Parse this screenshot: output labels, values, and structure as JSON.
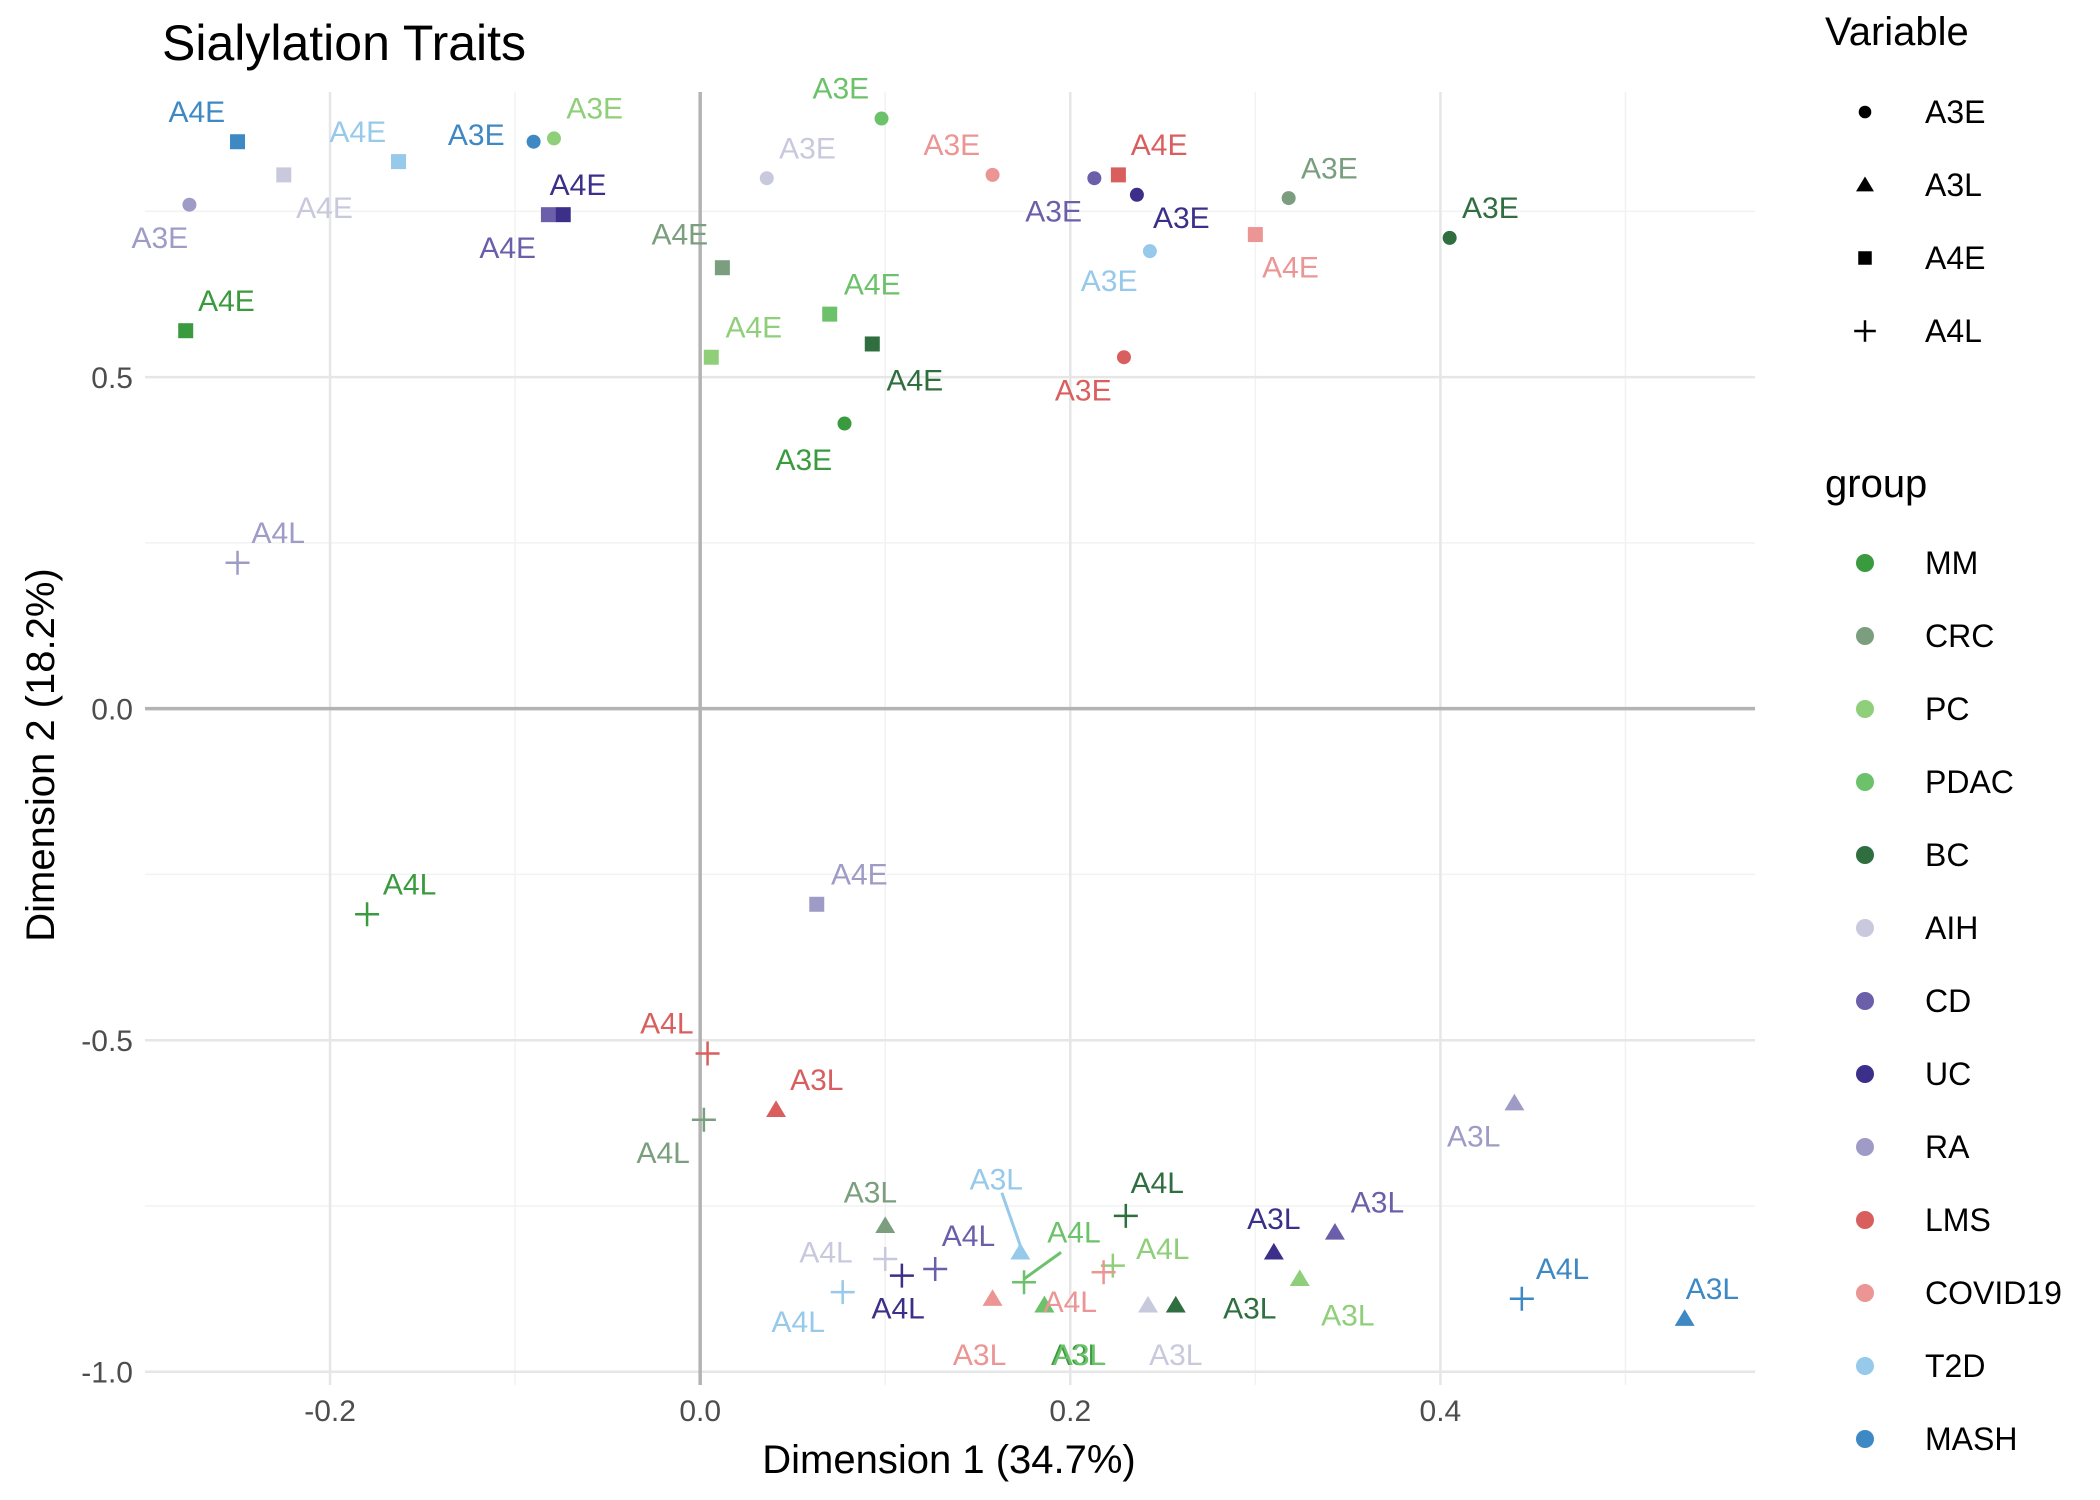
{
  "chart_data": {
    "type": "scatter",
    "title": "Sialylation  Traits",
    "xlabel": "Dimension 1 (34.7%)",
    "ylabel": "Dimension 2 (18.2%)",
    "xlim": [
      -0.3,
      0.57
    ],
    "ylim": [
      -1.02,
      0.93
    ],
    "x_ticks": [
      -0.2,
      0.0,
      0.2,
      0.4
    ],
    "x_tick_labels": [
      "-0.2",
      "0.0",
      "0.2",
      "0.4"
    ],
    "y_ticks": [
      -1.0,
      -0.5,
      0.0,
      0.5
    ],
    "y_tick_labels": [
      "-1.0",
      "-0.5",
      "0.0",
      "0.5"
    ],
    "grid": true,
    "legend_position": "right",
    "legend_variable": {
      "title": "Variable",
      "items": [
        {
          "label": "A3E",
          "shape": "circle"
        },
        {
          "label": "A3L",
          "shape": "triangle"
        },
        {
          "label": "A4E",
          "shape": "square"
        },
        {
          "label": "A4L",
          "shape": "plus"
        }
      ]
    },
    "legend_group": {
      "title": "group",
      "items": [
        {
          "label": "MM",
          "color": "#3a9a3e"
        },
        {
          "label": "CRC",
          "color": "#7a9e7e"
        },
        {
          "label": "PC",
          "color": "#8fcf7a"
        },
        {
          "label": "PDAC",
          "color": "#6cc26a"
        },
        {
          "label": "BC",
          "color": "#2f6e3f"
        },
        {
          "label": "AIH",
          "color": "#c9c9de"
        },
        {
          "label": "CD",
          "color": "#6a5fa8"
        },
        {
          "label": "UC",
          "color": "#3b2f8a"
        },
        {
          "label": "RA",
          "color": "#9e9cc6"
        },
        {
          "label": "LMS",
          "color": "#d95f5f"
        },
        {
          "label": "COVID19",
          "color": "#eb9595"
        },
        {
          "label": "T2D",
          "color": "#96c9ea"
        },
        {
          "label": "MASH",
          "color": "#3e88c4"
        }
      ]
    },
    "points": [
      {
        "group": "MM",
        "variable": "A3E",
        "x": 0.078,
        "y": 0.43
      },
      {
        "group": "MM",
        "variable": "A3L",
        "x": 0.186,
        "y": -0.9
      },
      {
        "group": "MM",
        "variable": "A4E",
        "x": -0.278,
        "y": 0.57
      },
      {
        "group": "MM",
        "variable": "A4L",
        "x": -0.18,
        "y": -0.31
      },
      {
        "group": "CRC",
        "variable": "A3E",
        "x": 0.318,
        "y": 0.77
      },
      {
        "group": "CRC",
        "variable": "A3L",
        "x": 0.1,
        "y": -0.78
      },
      {
        "group": "CRC",
        "variable": "A4E",
        "x": 0.012,
        "y": 0.665
      },
      {
        "group": "CRC",
        "variable": "A4L",
        "x": 0.002,
        "y": -0.62
      },
      {
        "group": "PC",
        "variable": "A3E",
        "x": -0.079,
        "y": 0.86
      },
      {
        "group": "PC",
        "variable": "A3L",
        "x": 0.324,
        "y": -0.86
      },
      {
        "group": "PC",
        "variable": "A4E",
        "x": 0.006,
        "y": 0.53
      },
      {
        "group": "PC",
        "variable": "A4L",
        "x": 0.223,
        "y": -0.84
      },
      {
        "group": "PDAC",
        "variable": "A3E",
        "x": 0.098,
        "y": 0.89
      },
      {
        "group": "PDAC",
        "variable": "A3L",
        "x": 0.186,
        "y": -0.9
      },
      {
        "group": "PDAC",
        "variable": "A4E",
        "x": 0.07,
        "y": 0.595
      },
      {
        "group": "PDAC",
        "variable": "A4L",
        "x": 0.175,
        "y": -0.865
      },
      {
        "group": "BC",
        "variable": "A3E",
        "x": 0.405,
        "y": 0.71
      },
      {
        "group": "BC",
        "variable": "A3L",
        "x": 0.257,
        "y": -0.9
      },
      {
        "group": "BC",
        "variable": "A4E",
        "x": 0.093,
        "y": 0.55
      },
      {
        "group": "BC",
        "variable": "A4L",
        "x": 0.23,
        "y": -0.765
      },
      {
        "group": "AIH",
        "variable": "A3E",
        "x": 0.036,
        "y": 0.8
      },
      {
        "group": "AIH",
        "variable": "A3L",
        "x": 0.242,
        "y": -0.9
      },
      {
        "group": "AIH",
        "variable": "A4E",
        "x": -0.225,
        "y": 0.805
      },
      {
        "group": "AIH",
        "variable": "A4L",
        "x": 0.1,
        "y": -0.83
      },
      {
        "group": "CD",
        "variable": "A3E",
        "x": 0.213,
        "y": 0.8
      },
      {
        "group": "CD",
        "variable": "A3L",
        "x": 0.343,
        "y": -0.79
      },
      {
        "group": "CD",
        "variable": "A4E",
        "x": -0.082,
        "y": 0.745
      },
      {
        "group": "CD",
        "variable": "A4L",
        "x": 0.127,
        "y": -0.845
      },
      {
        "group": "UC",
        "variable": "A3E",
        "x": 0.236,
        "y": 0.775
      },
      {
        "group": "UC",
        "variable": "A3L",
        "x": 0.31,
        "y": -0.82
      },
      {
        "group": "UC",
        "variable": "A4E",
        "x": -0.074,
        "y": 0.745
      },
      {
        "group": "UC",
        "variable": "A4L",
        "x": 0.109,
        "y": -0.855
      },
      {
        "group": "RA",
        "variable": "A3E",
        "x": -0.276,
        "y": 0.76
      },
      {
        "group": "RA",
        "variable": "A3L",
        "x": 0.44,
        "y": -0.595
      },
      {
        "group": "RA",
        "variable": "A4E",
        "x": 0.063,
        "y": -0.295
      },
      {
        "group": "RA",
        "variable": "A4L",
        "x": -0.25,
        "y": 0.22
      },
      {
        "group": "LMS",
        "variable": "A3E",
        "x": 0.229,
        "y": 0.53
      },
      {
        "group": "LMS",
        "variable": "A3L",
        "x": 0.041,
        "y": -0.605
      },
      {
        "group": "LMS",
        "variable": "A4E",
        "x": 0.226,
        "y": 0.805
      },
      {
        "group": "LMS",
        "variable": "A4L",
        "x": 0.004,
        "y": -0.52
      },
      {
        "group": "COVID19",
        "variable": "A3E",
        "x": 0.158,
        "y": 0.805
      },
      {
        "group": "COVID19",
        "variable": "A3L",
        "x": 0.158,
        "y": -0.89
      },
      {
        "group": "COVID19",
        "variable": "A4E",
        "x": 0.3,
        "y": 0.715
      },
      {
        "group": "COVID19",
        "variable": "A4L",
        "x": 0.218,
        "y": -0.85
      },
      {
        "group": "T2D",
        "variable": "A3E",
        "x": 0.243,
        "y": 0.69
      },
      {
        "group": "T2D",
        "variable": "A3L",
        "x": 0.173,
        "y": -0.82
      },
      {
        "group": "T2D",
        "variable": "A4E",
        "x": -0.163,
        "y": 0.825
      },
      {
        "group": "T2D",
        "variable": "A4L",
        "x": 0.077,
        "y": -0.88
      },
      {
        "group": "MASH",
        "variable": "A3E",
        "x": -0.09,
        "y": 0.855
      },
      {
        "group": "MASH",
        "variable": "A3L",
        "x": 0.532,
        "y": -0.92
      },
      {
        "group": "MASH",
        "variable": "A4E",
        "x": -0.25,
        "y": 0.855
      },
      {
        "group": "MASH",
        "variable": "A4L",
        "x": 0.444,
        "y": -0.89
      }
    ],
    "point_labels": [
      {
        "group": "MM",
        "text": "A3E",
        "x": 0.056,
        "y": 0.375
      },
      {
        "group": "MM",
        "text": "A3L",
        "x": 0.204,
        "y": -0.975
      },
      {
        "group": "MM",
        "text": "A4E",
        "x": -0.256,
        "y": 0.615
      },
      {
        "group": "MM",
        "text": "A4L",
        "x": -0.157,
        "y": -0.265
      },
      {
        "group": "CRC",
        "text": "A3E",
        "x": 0.34,
        "y": 0.815
      },
      {
        "group": "CRC",
        "text": "A3L",
        "x": 0.092,
        "y": -0.73
      },
      {
        "group": "CRC",
        "text": "A4E",
        "x": -0.011,
        "y": 0.715
      },
      {
        "group": "CRC",
        "text": "A4L",
        "x": -0.02,
        "y": -0.67
      },
      {
        "group": "PC",
        "text": "A3E",
        "x": -0.057,
        "y": 0.905
      },
      {
        "group": "PC",
        "text": "A3L",
        "x": 0.35,
        "y": -0.915
      },
      {
        "group": "PC",
        "text": "A4E",
        "x": 0.029,
        "y": 0.575
      },
      {
        "group": "PC",
        "text": "A4L",
        "x": 0.25,
        "y": -0.815
      },
      {
        "group": "PDAC",
        "text": "A3E",
        "x": 0.076,
        "y": 0.935
      },
      {
        "group": "PDAC",
        "text": "A3L",
        "x": 0.205,
        "y": -0.975
      },
      {
        "group": "PDAC",
        "text": "A4E",
        "x": 0.093,
        "y": 0.64
      },
      {
        "group": "PDAC",
        "text": "A4L",
        "x": 0.202,
        "y": -0.79
      },
      {
        "group": "BC",
        "text": "A3E",
        "x": 0.427,
        "y": 0.755
      },
      {
        "group": "BC",
        "text": "A3L",
        "x": 0.297,
        "y": -0.905
      },
      {
        "group": "BC",
        "text": "A4E",
        "x": 0.116,
        "y": 0.495
      },
      {
        "group": "BC",
        "text": "A4L",
        "x": 0.247,
        "y": -0.715
      },
      {
        "group": "AIH",
        "text": "A3E",
        "x": 0.058,
        "y": 0.845
      },
      {
        "group": "AIH",
        "text": "A3L",
        "x": 0.257,
        "y": -0.975
      },
      {
        "group": "AIH",
        "text": "A4E",
        "x": -0.203,
        "y": 0.755
      },
      {
        "group": "AIH",
        "text": "A4L",
        "x": 0.068,
        "y": -0.82
      },
      {
        "group": "CD",
        "text": "A3E",
        "x": 0.191,
        "y": 0.75
      },
      {
        "group": "CD",
        "text": "A3L",
        "x": 0.366,
        "y": -0.745
      },
      {
        "group": "CD",
        "text": "A4E",
        "x": -0.104,
        "y": 0.695
      },
      {
        "group": "CD",
        "text": "A4L",
        "x": 0.145,
        "y": -0.795
      },
      {
        "group": "UC",
        "text": "A3E",
        "x": 0.26,
        "y": 0.74
      },
      {
        "group": "UC",
        "text": "A3L",
        "x": 0.31,
        "y": -0.77
      },
      {
        "group": "UC",
        "text": "A4E",
        "x": -0.066,
        "y": 0.79
      },
      {
        "group": "UC",
        "text": "A4L",
        "x": 0.107,
        "y": -0.905
      },
      {
        "group": "RA",
        "text": "A3E",
        "x": -0.292,
        "y": 0.71
      },
      {
        "group": "RA",
        "text": "A3L",
        "x": 0.418,
        "y": -0.645
      },
      {
        "group": "RA",
        "text": "A4E",
        "x": 0.086,
        "y": -0.25
      },
      {
        "group": "RA",
        "text": "A4L",
        "x": -0.228,
        "y": 0.265
      },
      {
        "group": "LMS",
        "text": "A3E",
        "x": 0.207,
        "y": 0.48
      },
      {
        "group": "LMS",
        "text": "A3L",
        "x": 0.063,
        "y": -0.56
      },
      {
        "group": "LMS",
        "text": "A4E",
        "x": 0.248,
        "y": 0.85
      },
      {
        "group": "LMS",
        "text": "A4L",
        "x": -0.018,
        "y": -0.475
      },
      {
        "group": "COVID19",
        "text": "A3E",
        "x": 0.136,
        "y": 0.85
      },
      {
        "group": "COVID19",
        "text": "A3L",
        "x": 0.151,
        "y": -0.975
      },
      {
        "group": "COVID19",
        "text": "A4E",
        "x": 0.319,
        "y": 0.665
      },
      {
        "group": "COVID19",
        "text": "A4L",
        "x": 0.2,
        "y": -0.895
      },
      {
        "group": "T2D",
        "text": "A3E",
        "x": 0.221,
        "y": 0.645
      },
      {
        "group": "T2D",
        "text": "A3L",
        "x": 0.16,
        "y": -0.71
      },
      {
        "group": "T2D",
        "text": "A4E",
        "x": -0.185,
        "y": 0.87
      },
      {
        "group": "T2D",
        "text": "A4L",
        "x": 0.053,
        "y": -0.925
      },
      {
        "group": "MASH",
        "text": "A3E",
        "x": -0.121,
        "y": 0.865
      },
      {
        "group": "MASH",
        "text": "A3L",
        "x": 0.547,
        "y": -0.875
      },
      {
        "group": "MASH",
        "text": "A4E",
        "x": -0.272,
        "y": 0.9
      },
      {
        "group": "MASH",
        "text": "A4L",
        "x": 0.466,
        "y": -0.845
      }
    ],
    "connectors": [
      {
        "group": "T2D",
        "from": [
          0.163,
          -0.73
        ],
        "to": [
          0.173,
          -0.81
        ]
      },
      {
        "group": "PDAC",
        "from": [
          0.195,
          -0.82
        ],
        "to": [
          0.175,
          -0.86
        ]
      }
    ]
  }
}
